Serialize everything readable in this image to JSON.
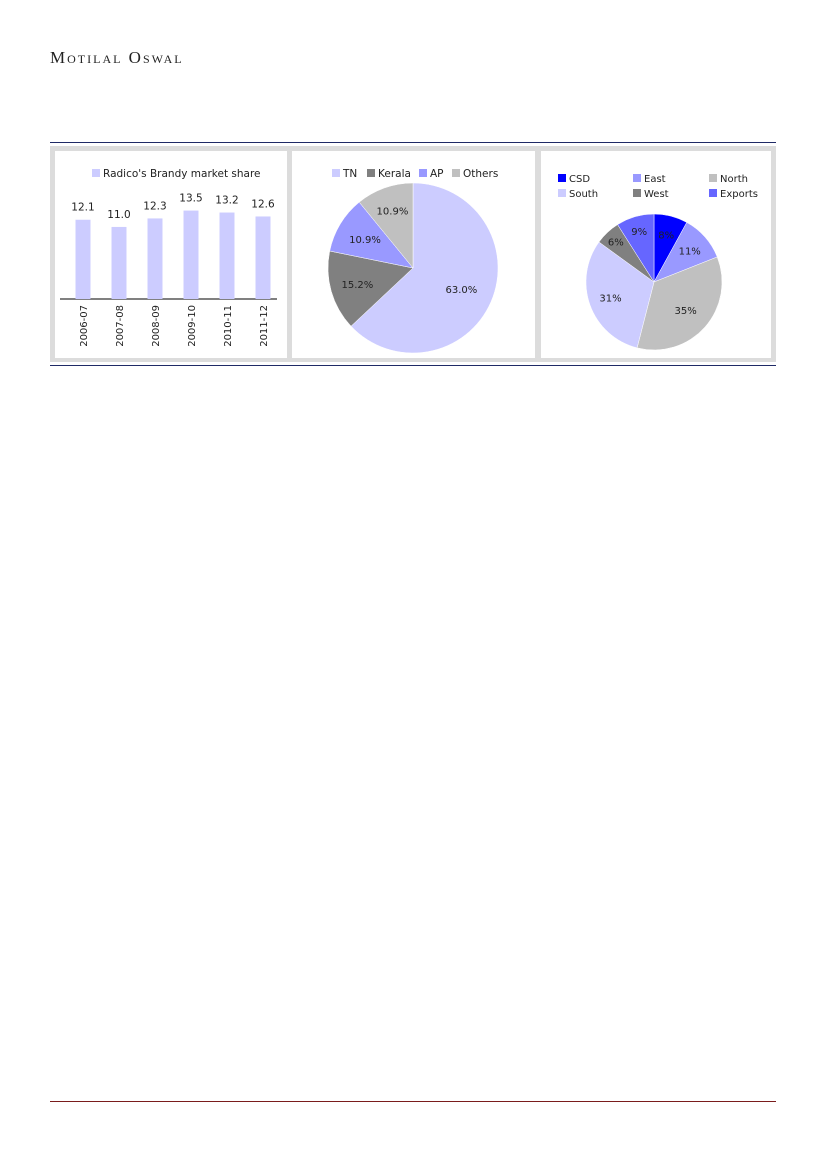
{
  "header": {
    "brand": "Motilal Oswal"
  },
  "colors": {
    "lavender": "#ccccff",
    "dark_gray": "#808080",
    "periwinkle": "#9999ff",
    "light_gray": "#c0c0c0",
    "blue": "#0000ff",
    "medium_blue": "#6666ff"
  },
  "chart_data": [
    {
      "type": "bar",
      "legend": "Radico's Brandy market share",
      "categories": [
        "2006-07",
        "2007-08",
        "2008-09",
        "2009-10",
        "2010-11",
        "2011-12"
      ],
      "values": [
        12.1,
        11.0,
        12.3,
        13.5,
        13.2,
        12.6
      ],
      "value_labels": [
        "12.1",
        "11.0",
        "12.3",
        "13.5",
        "13.2",
        "12.6"
      ],
      "color": "#ccccff",
      "legend_position": "top"
    },
    {
      "type": "pie",
      "legend_position": "top",
      "slices": [
        {
          "name": "TN",
          "value": 63.0,
          "label": "63.0%",
          "color": "#ccccff"
        },
        {
          "name": "Kerala",
          "value": 15.2,
          "label": "15.2%",
          "color": "#808080"
        },
        {
          "name": "AP",
          "value": 10.9,
          "label": "10.9%",
          "color": "#9999ff"
        },
        {
          "name": "Others",
          "value": 10.9,
          "label": "10.9%",
          "color": "#c0c0c0"
        }
      ]
    },
    {
      "type": "pie",
      "legend_position": "top",
      "slices": [
        {
          "name": "CSD",
          "value": 8,
          "label": "8%",
          "color": "#0000ff"
        },
        {
          "name": "East",
          "value": 11,
          "label": "11%",
          "color": "#9999ff"
        },
        {
          "name": "North",
          "value": 35,
          "label": "35%",
          "color": "#c0c0c0"
        },
        {
          "name": "South",
          "value": 31,
          "label": "31%",
          "color": "#ccccff"
        },
        {
          "name": "West",
          "value": 6,
          "label": "6%",
          "color": "#808080"
        },
        {
          "name": "Exports",
          "value": 9,
          "label": "9%",
          "color": "#6666ff"
        }
      ]
    }
  ]
}
